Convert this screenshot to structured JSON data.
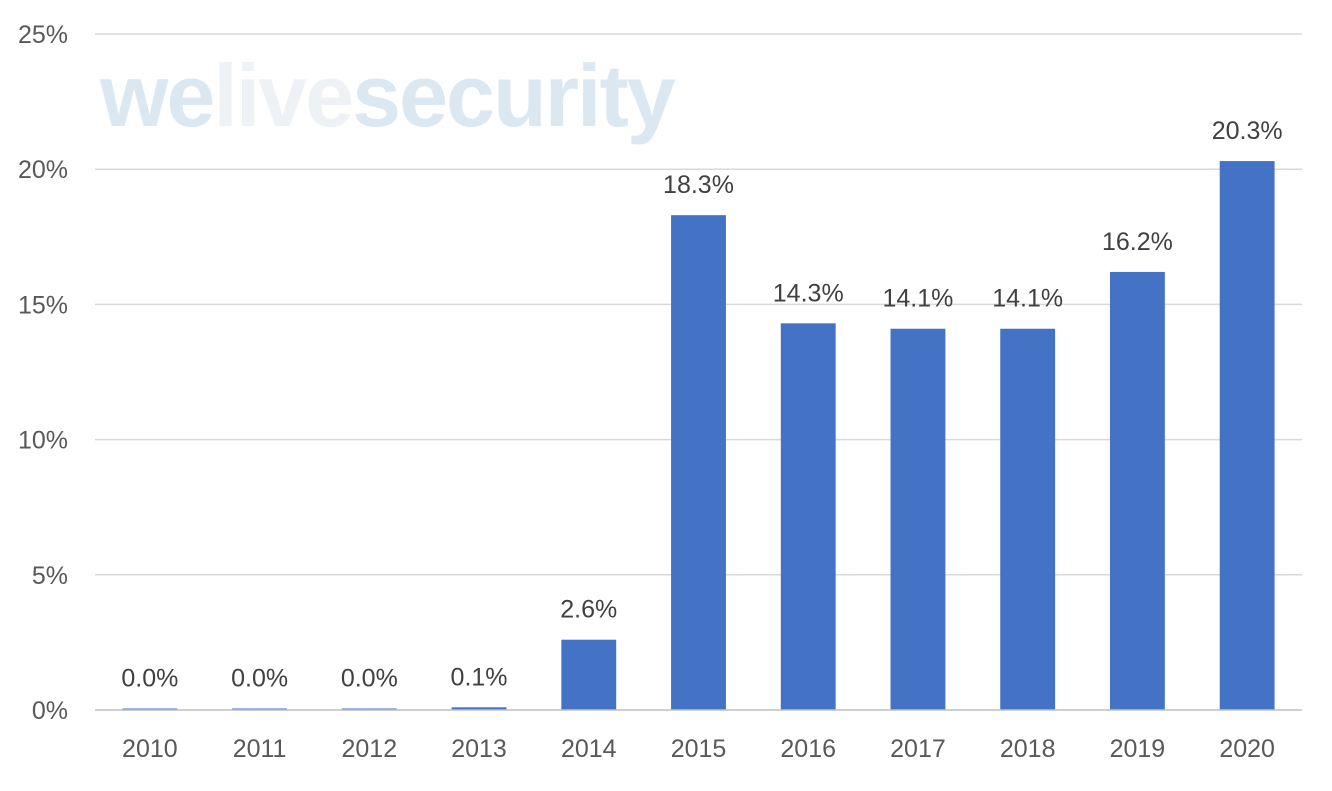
{
  "watermark": {
    "part1": "we",
    "part2": "live",
    "part3": "security"
  },
  "colors": {
    "bar": "#4472c4",
    "grid": "#d9d9d9",
    "axis": "#bfbfbf",
    "watermark_main": "#dbe8f2",
    "watermark_light": "#eef2f6"
  },
  "chart_data": {
    "type": "bar",
    "title": "",
    "xlabel": "",
    "ylabel": "",
    "categories": [
      "2010",
      "2011",
      "2012",
      "2013",
      "2014",
      "2015",
      "2016",
      "2017",
      "2018",
      "2019",
      "2020"
    ],
    "values": [
      0.0,
      0.0,
      0.0,
      0.1,
      2.6,
      18.3,
      14.3,
      14.1,
      14.1,
      16.2,
      20.3
    ],
    "value_labels": [
      "0.0%",
      "0.0%",
      "0.0%",
      "0.1%",
      "2.6%",
      "18.3%",
      "14.3%",
      "14.1%",
      "14.1%",
      "16.2%",
      "20.3%"
    ],
    "ylim": [
      0,
      25
    ],
    "yticks": [
      0,
      5,
      10,
      15,
      20,
      25
    ],
    "ytick_labels": [
      "0%",
      "5%",
      "10%",
      "15%",
      "20%",
      "25%"
    ],
    "grid": true,
    "legend": "none"
  }
}
